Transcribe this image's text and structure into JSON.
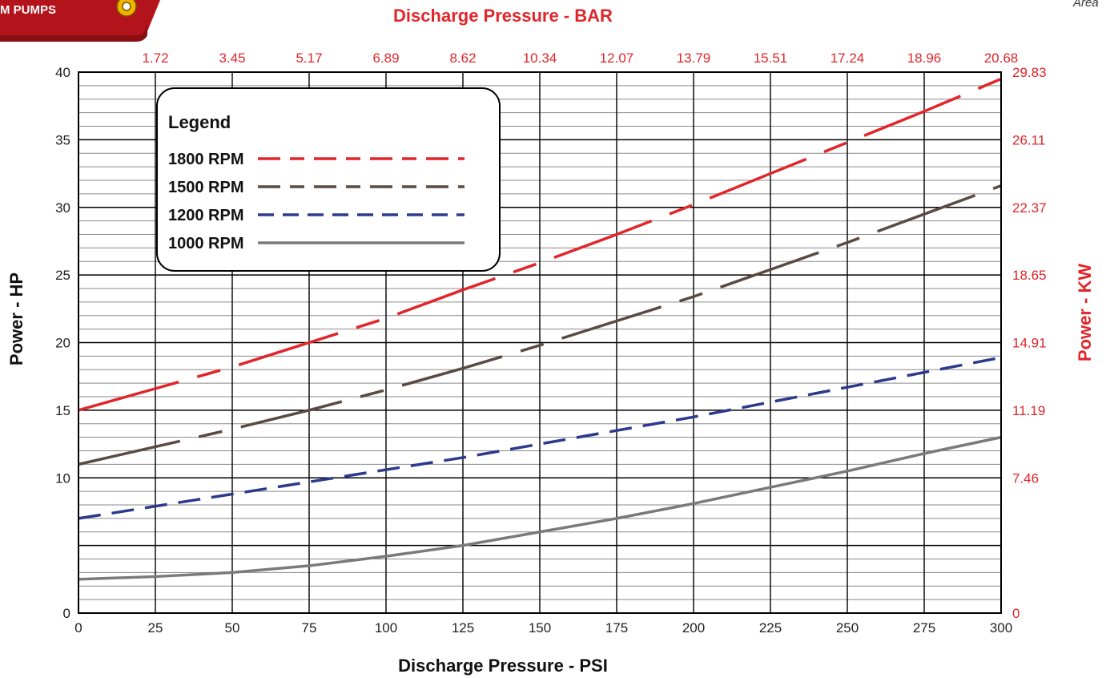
{
  "brand": {
    "logo_text": "M PUMPS",
    "corner_text": "Area"
  },
  "colors": {
    "red": "#e0262b",
    "brown": "#5a4a42",
    "navy": "#2b3a8c",
    "gray": "#7a7a7a",
    "logo_red": "#b3141c",
    "gold": "#f0b400"
  },
  "chart_data": {
    "type": "line",
    "title": "",
    "xlabel": "Discharge Pressure - PSI",
    "ylabel": "Power - HP",
    "x2label": "Discharge Pressure - BAR",
    "y2label": "Power - KW",
    "xlim": [
      0,
      300
    ],
    "ylim": [
      0,
      40
    ],
    "x_ticks": [
      0,
      25,
      50,
      75,
      100,
      125,
      150,
      175,
      200,
      225,
      250,
      275,
      300
    ],
    "y_ticks": [
      0,
      5,
      10,
      15,
      20,
      25,
      30,
      35,
      40
    ],
    "y_tick_labels": [
      "0",
      "",
      "10",
      "15",
      "20",
      "25",
      "30",
      "35",
      "40"
    ],
    "x2_ticks": [
      25,
      50,
      75,
      100,
      125,
      150,
      175,
      200,
      225,
      250,
      275,
      300
    ],
    "x2_tick_labels": [
      "1.72",
      "3.45",
      "5.17",
      "6.89",
      "8.62",
      "10.34",
      "12.07",
      "13.79",
      "15.51",
      "17.24",
      "18.96",
      "20.68"
    ],
    "y2_ticks": [
      0,
      10,
      15,
      20,
      25,
      30,
      35,
      40
    ],
    "y2_tick_labels": [
      "0",
      "7.46",
      "11.19",
      "14.91",
      "18.65",
      "22.37",
      "26.11",
      "29.83"
    ],
    "grid": true,
    "legend": {
      "title": "Legend",
      "placement": "top-left",
      "entries": [
        "1800 RPM",
        "1500 RPM",
        "1200 RPM",
        "1000 RPM"
      ]
    },
    "series": [
      {
        "name": "1800 RPM",
        "color": "#e0262b",
        "style": "long-short-dash",
        "x": [
          0,
          25,
          50,
          75,
          100,
          125,
          150,
          175,
          200,
          225,
          250,
          275,
          300
        ],
        "y": [
          15.0,
          16.6,
          18.2,
          20.0,
          21.8,
          23.9,
          25.9,
          28.0,
          30.2,
          32.5,
          34.8,
          37.1,
          39.5
        ]
      },
      {
        "name": "1500 RPM",
        "color": "#5a4a42",
        "style": "long-short-dash",
        "x": [
          0,
          25,
          50,
          75,
          100,
          125,
          150,
          175,
          200,
          225,
          250,
          275,
          300
        ],
        "y": [
          11.0,
          12.3,
          13.6,
          15.0,
          16.5,
          18.1,
          19.8,
          21.6,
          23.4,
          25.4,
          27.4,
          29.5,
          31.6
        ]
      },
      {
        "name": "1200 RPM",
        "color": "#2b3a8c",
        "style": "dashed",
        "x": [
          0,
          25,
          50,
          75,
          100,
          125,
          150,
          175,
          200,
          225,
          250,
          275,
          300
        ],
        "y": [
          7.0,
          7.9,
          8.8,
          9.7,
          10.6,
          11.5,
          12.5,
          13.5,
          14.5,
          15.6,
          16.7,
          17.8,
          18.9
        ]
      },
      {
        "name": "1000 RPM",
        "color": "#7a7a7a",
        "style": "solid",
        "x": [
          0,
          25,
          50,
          75,
          100,
          125,
          150,
          175,
          200,
          225,
          250,
          275,
          300
        ],
        "y": [
          2.5,
          2.7,
          3.0,
          3.5,
          4.2,
          5.0,
          6.0,
          7.0,
          8.1,
          9.3,
          10.5,
          11.8,
          13.0
        ]
      }
    ]
  }
}
